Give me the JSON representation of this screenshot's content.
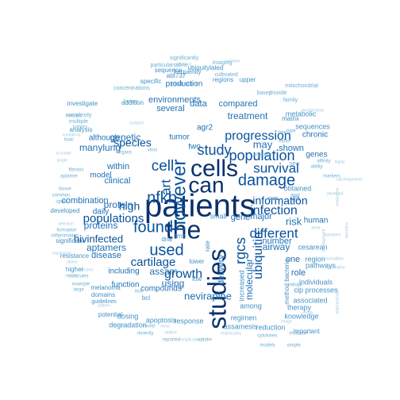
{
  "palette": {
    "level1": "#08306b",
    "level2": "#08519c",
    "level3": "#2171b5",
    "level4": "#4292c6",
    "level5": "#6baed6",
    "level6": "#9ecae1",
    "level7": "#c6dbef"
  },
  "words": [
    {
      "text": "patients",
      "weight": 1,
      "rotate": 0
    },
    {
      "text": "the",
      "weight": 1,
      "rotate": 0
    },
    {
      "text": "studies",
      "weight": 1,
      "rotate": 90
    },
    {
      "text": "cells",
      "weight": 1,
      "rotate": 0
    },
    {
      "text": "can",
      "weight": 1,
      "rotate": 0
    },
    {
      "text": "however",
      "weight": 2,
      "rotate": 90
    },
    {
      "text": "used",
      "weight": 2,
      "rotate": 0
    },
    {
      "text": "found",
      "weight": 2,
      "rotate": 0
    },
    {
      "text": "nfkb",
      "weight": 2,
      "rotate": 0
    },
    {
      "text": "damage",
      "weight": 2,
      "rotate": 0
    },
    {
      "text": "population",
      "weight": 2,
      "rotate": 0
    },
    {
      "text": "populations",
      "weight": 2,
      "rotate": 0
    },
    {
      "text": "cell",
      "weight": 2,
      "rotate": 0
    },
    {
      "text": "study",
      "weight": 2,
      "rotate": 0
    },
    {
      "text": "progression",
      "weight": 2,
      "rotate": 0
    },
    {
      "text": "art",
      "weight": 2,
      "rotate": 90
    },
    {
      "text": "survival",
      "weight": 2,
      "rotate": 0
    },
    {
      "text": "different",
      "weight": 2,
      "rotate": 0
    },
    {
      "text": "infection",
      "weight": 2,
      "rotate": 0
    },
    {
      "text": "information",
      "weight": 2,
      "rotate": 0
    },
    {
      "text": "rgcs",
      "weight": 2,
      "rotate": 90
    },
    {
      "text": "ubiquitin",
      "weight": 2,
      "rotate": 90
    },
    {
      "text": "growth",
      "weight": 2,
      "rotate": 0
    },
    {
      "text": "cartilage",
      "weight": 2,
      "rotate": 0
    },
    {
      "text": "hivinfected",
      "weight": 2,
      "rotate": 0
    },
    {
      "text": "high",
      "weight": 2,
      "rotate": 0
    },
    {
      "text": "species",
      "weight": 2,
      "rotate": 0
    },
    {
      "text": "proteins",
      "weight": 3,
      "rotate": 0
    },
    {
      "text": "protein",
      "weight": 3,
      "rotate": 0
    },
    {
      "text": "genetic",
      "weight": 3,
      "rotate": 0
    },
    {
      "text": "manylung",
      "weight": 3,
      "rotate": 0
    },
    {
      "text": "nevirapine",
      "weight": 3,
      "rotate": 0
    },
    {
      "text": "molecular",
      "weight": 3,
      "rotate": 90
    },
    {
      "text": "delivery",
      "weight": 3,
      "rotate": 90
    },
    {
      "text": "using",
      "weight": 3,
      "rotate": 0
    },
    {
      "text": "assam",
      "weight": 3,
      "rotate": 0
    },
    {
      "text": "aptamers",
      "weight": 3,
      "rotate": 0
    },
    {
      "text": "may",
      "weight": 3,
      "rotate": 0
    },
    {
      "text": "airway",
      "weight": 3,
      "rotate": 0
    },
    {
      "text": "risk",
      "weight": 3,
      "rotate": 0
    },
    {
      "text": "treatment",
      "weight": 3,
      "rotate": 0
    },
    {
      "text": "compared",
      "weight": 3,
      "rotate": 0
    },
    {
      "text": "environments",
      "weight": 3,
      "rotate": 0
    },
    {
      "text": "production",
      "weight": 3,
      "rotate": 0
    },
    {
      "text": "several",
      "weight": 3,
      "rotate": 0
    },
    {
      "text": "data",
      "weight": 3,
      "rotate": 0
    },
    {
      "text": "within",
      "weight": 3,
      "rotate": 0
    },
    {
      "text": "clinical",
      "weight": 3,
      "rotate": 0
    },
    {
      "text": "daily",
      "weight": 3,
      "rotate": 0
    },
    {
      "text": "disease",
      "weight": 3,
      "rotate": 0
    },
    {
      "text": "including",
      "weight": 3,
      "rotate": 0
    },
    {
      "text": "function",
      "weight": 3,
      "rotate": 0
    },
    {
      "text": "compounds",
      "weight": 3,
      "rotate": 0
    },
    {
      "text": "number",
      "weight": 3,
      "rotate": 0
    },
    {
      "text": "role",
      "weight": 3,
      "rotate": 0
    },
    {
      "text": "one",
      "weight": 3,
      "rotate": 0
    },
    {
      "text": "major",
      "weight": 3,
      "rotate": 0
    },
    {
      "text": "gene",
      "weight": 3,
      "rotate": 0
    },
    {
      "text": "human",
      "weight": 3,
      "rotate": 0
    },
    {
      "text": "shown",
      "weight": 3,
      "rotate": 0
    },
    {
      "text": "genes",
      "weight": 3,
      "rotate": 0
    },
    {
      "text": "chronic",
      "weight": 3,
      "rotate": 0
    },
    {
      "text": "model",
      "weight": 3,
      "rotate": 0
    },
    {
      "text": "combination",
      "weight": 3,
      "rotate": 0
    },
    {
      "text": "tumor",
      "weight": 3,
      "rotate": 0
    },
    {
      "text": "two",
      "weight": 3,
      "rotate": 0
    },
    {
      "text": "agr2",
      "weight": 3,
      "rotate": 0
    },
    {
      "text": "although",
      "weight": 3,
      "rotate": 0
    },
    {
      "text": "metabolic",
      "weight": 4,
      "rotate": 0
    },
    {
      "text": "cesarean",
      "weight": 4,
      "rotate": 0
    },
    {
      "text": "pathways",
      "weight": 4,
      "rotate": 0
    },
    {
      "text": "region",
      "weight": 4,
      "rotate": 0
    },
    {
      "text": "individuals",
      "weight": 4,
      "rotate": 0
    },
    {
      "text": "clp processes",
      "weight": 4,
      "rotate": 0
    },
    {
      "text": "associated",
      "weight": 4,
      "rotate": 0
    },
    {
      "text": "among",
      "weight": 4,
      "rotate": 0
    },
    {
      "text": "therapy",
      "weight": 4,
      "rotate": 0
    },
    {
      "text": "knowledge",
      "weight": 4,
      "rotate": 0
    },
    {
      "text": "regimen",
      "weight": 4,
      "rotate": 0
    },
    {
      "text": "reduction",
      "weight": 4,
      "rotate": 0
    },
    {
      "text": "increased",
      "weight": 4,
      "rotate": 90
    },
    {
      "text": "apoptosis",
      "weight": 4,
      "rotate": 0
    },
    {
      "text": "response",
      "weight": 4,
      "rotate": 0
    },
    {
      "text": "assamesis",
      "weight": 4,
      "rotate": 0
    },
    {
      "text": "dosing",
      "weight": 4,
      "rotate": 0
    },
    {
      "text": "degradation",
      "weight": 4,
      "rotate": 0
    },
    {
      "text": "melanoma",
      "weight": 4,
      "rotate": 0
    },
    {
      "text": "domains",
      "weight": 4,
      "rotate": 0
    },
    {
      "text": "obtained",
      "weight": 4,
      "rotate": 0
    },
    {
      "text": "matrix",
      "weight": 4,
      "rotate": 0
    },
    {
      "text": "addition",
      "weight": 4,
      "rotate": 0
    },
    {
      "text": "regions",
      "weight": 4,
      "rotate": 0
    },
    {
      "text": "upper",
      "weight": 4,
      "rotate": 0
    },
    {
      "text": "sequences",
      "weight": 4,
      "rotate": 0
    },
    {
      "text": "specific",
      "weight": 4,
      "rotate": 0
    },
    {
      "text": "ubiquitylated",
      "weight": 4,
      "rotate": 0
    },
    {
      "text": "frequently",
      "weight": 4,
      "rotate": 0
    },
    {
      "text": "abt737",
      "weight": 4,
      "rotate": 0
    },
    {
      "text": "sequence",
      "weight": 4,
      "rotate": 0
    },
    {
      "text": "investigate",
      "weight": 4,
      "rotate": 0
    },
    {
      "text": "analysis",
      "weight": 4,
      "rotate": 0
    },
    {
      "text": "developed",
      "weight": 4,
      "rotate": 0
    },
    {
      "text": "significant",
      "weight": 4,
      "rotate": 0
    },
    {
      "text": "resistance",
      "weight": 4,
      "rotate": 0
    },
    {
      "text": "potential",
      "weight": 4,
      "rotate": 0
    },
    {
      "text": "guidelines",
      "weight": 4,
      "rotate": 0
    },
    {
      "text": "small",
      "weight": 4,
      "rotate": 0
    },
    {
      "text": "via",
      "weight": 4,
      "rotate": 0
    },
    {
      "text": "method bacteria",
      "weight": 4,
      "rotate": 90
    },
    {
      "text": "uss",
      "weight": 4,
      "rotate": 0
    },
    {
      "text": "tmz",
      "weight": 4,
      "rotate": 0
    },
    {
      "text": "lower",
      "weight": 4,
      "rotate": 0
    },
    {
      "text": "low",
      "weight": 4,
      "rotate": 0
    },
    {
      "text": "rate",
      "weight": 4,
      "rotate": 90
    },
    {
      "text": "dna",
      "weight": 4,
      "rotate": 0
    },
    {
      "text": "bcl",
      "weight": 4,
      "rotate": 0
    },
    {
      "text": "higher",
      "weight": 4,
      "rotate": 0
    },
    {
      "text": "important",
      "weight": 4,
      "rotate": 0
    },
    {
      "text": "mitochondrial",
      "weight": 5,
      "rotate": 0
    },
    {
      "text": "concentrations",
      "weight": 5,
      "rotate": 0
    },
    {
      "text": "particularsaline",
      "weight": 5,
      "rotate": 0
    },
    {
      "text": "production",
      "weight": 5,
      "rotate": 0
    },
    {
      "text": "complexity",
      "weight": 5,
      "rotate": 0
    },
    {
      "text": "multiple",
      "weight": 5,
      "rotate": 0
    },
    {
      "text": "cultivated",
      "weight": 5,
      "rotate": 0
    },
    {
      "text": "imaging",
      "weight": 5,
      "rotate": 0
    },
    {
      "text": "significantly",
      "weight": 5,
      "rotate": 0
    },
    {
      "text": "based",
      "weight": 5,
      "rotate": 0
    },
    {
      "text": "provide",
      "weight": 5,
      "rotate": 0
    },
    {
      "text": "new",
      "weight": 5,
      "rotate": 0
    },
    {
      "text": "family",
      "weight": 5,
      "rotate": 0
    },
    {
      "text": "toxic",
      "weight": 5,
      "rotate": 0
    },
    {
      "text": "fibrosis",
      "weight": 5,
      "rotate": 0
    },
    {
      "text": "aptamer",
      "weight": 5,
      "rotate": 0
    },
    {
      "text": "tissue",
      "weight": 5,
      "rotate": 0
    },
    {
      "text": "formation",
      "weight": 5,
      "rotate": 0
    },
    {
      "text": "inflammation",
      "weight": 5,
      "rotate": 0
    },
    {
      "text": "molecules",
      "weight": 5,
      "rotate": 0
    },
    {
      "text": "example",
      "weight": 5,
      "rotate": 0
    },
    {
      "text": "large",
      "weight": 5,
      "rotate": 0
    },
    {
      "text": "bos",
      "weight": 5,
      "rotate": 0
    },
    {
      "text": "novel",
      "weight": 5,
      "rotate": 0
    },
    {
      "text": "recently",
      "weight": 5,
      "rotate": 0
    },
    {
      "text": "reported",
      "weight": 5,
      "rotate": 0
    },
    {
      "text": "uptake",
      "weight": 5,
      "rotate": 0
    },
    {
      "text": "cytokines",
      "weight": 5,
      "rotate": 0
    },
    {
      "text": "cellular",
      "weight": 5,
      "rotate": 0
    },
    {
      "text": "ability",
      "weight": 5,
      "rotate": 0
    },
    {
      "text": "affinity",
      "weight": 5,
      "rotate": 0
    },
    {
      "text": "markers",
      "weight": 5,
      "rotate": 0
    },
    {
      "text": "either",
      "weight": 5,
      "rotate": 0
    },
    {
      "text": "effective",
      "weight": 5,
      "rotate": 0
    },
    {
      "text": "virus",
      "weight": 5,
      "rotate": 0
    },
    {
      "text": "organs",
      "weight": 5,
      "rotate": 0
    },
    {
      "text": "flow",
      "weight": 5,
      "rotate": 0
    },
    {
      "text": "common",
      "weight": 5,
      "rotate": 0
    },
    {
      "text": "upon",
      "weight": 5,
      "rotate": 0
    },
    {
      "text": "models",
      "weight": 5,
      "rotate": 0
    },
    {
      "text": "simple",
      "weight": 5,
      "rotate": 0
    },
    {
      "text": "mutation",
      "weight": 5,
      "rotate": 0
    },
    {
      "text": "factors",
      "weight": 5,
      "rotate": 0
    },
    {
      "text": "results",
      "weight": 5,
      "rotate": 0
    },
    {
      "text": "tumors",
      "weight": 5,
      "rotate": 0
    },
    {
      "text": "type",
      "weight": 5,
      "rotate": 0
    },
    {
      "text": "treg",
      "weight": 5,
      "rotate": 0
    },
    {
      "text": "lead",
      "weight": 5,
      "rotate": 0
    },
    {
      "text": "evaluation",
      "weight": 6,
      "rotate": 90
    },
    {
      "text": "abnormalities",
      "weight": 6,
      "rotate": 0
    },
    {
      "text": "hypersaline",
      "weight": 6,
      "rotate": 0
    },
    {
      "text": "development",
      "weight": 6,
      "rotate": 90
    },
    {
      "text": "mechanisms",
      "weight": 6,
      "rotate": 0
    },
    {
      "text": "variation",
      "weight": 6,
      "rotate": 0
    },
    {
      "text": "inference",
      "weight": 6,
      "rotate": 0
    },
    {
      "text": "isolated",
      "weight": 6,
      "rotate": 0
    },
    {
      "text": "conditions",
      "weight": 6,
      "rotate": 0
    },
    {
      "text": "accurate",
      "weight": 6,
      "rotate": 0
    },
    {
      "text": "single",
      "weight": 6,
      "rotate": 0
    },
    {
      "text": "expression",
      "weight": 6,
      "rotate": 0
    },
    {
      "text": "status",
      "weight": 6,
      "rotate": 0
    },
    {
      "text": "organic",
      "weight": 6,
      "rotate": 0
    },
    {
      "text": "pattern",
      "weight": 6,
      "rotate": 0
    },
    {
      "text": "patterns",
      "weight": 6,
      "rotate": 0
    },
    {
      "text": "midline",
      "weight": 6,
      "rotate": 0
    },
    {
      "text": "complications",
      "weight": 6,
      "rotate": 0
    },
    {
      "text": "enterocytes",
      "weight": 6,
      "rotate": 0
    },
    {
      "text": "image",
      "weight": 6,
      "rotate": 0
    },
    {
      "text": "observed",
      "weight": 6,
      "rotate": 0
    },
    {
      "text": "carcinogenesis",
      "weight": 6,
      "rotate": 0
    },
    {
      "text": "highly",
      "weight": 6,
      "rotate": 0
    },
    {
      "text": "bone",
      "weight": 6,
      "rotate": 0
    },
    {
      "text": "disorders",
      "weight": 6,
      "rotate": 0
    },
    {
      "text": "polymorphism",
      "weight": 6,
      "rotate": 90
    },
    {
      "text": "therefore",
      "weight": 6,
      "rotate": 90
    },
    {
      "text": "reads",
      "weight": 6,
      "rotate": 0
    },
    {
      "text": "selection",
      "weight": 6,
      "rotate": 0
    },
    {
      "text": "vaccines",
      "weight": 6,
      "rotate": 0
    },
    {
      "text": "mrna",
      "weight": 6,
      "rotate": 0
    },
    {
      "text": "strains",
      "weight": 6,
      "rotate": 0
    }
  ]
}
